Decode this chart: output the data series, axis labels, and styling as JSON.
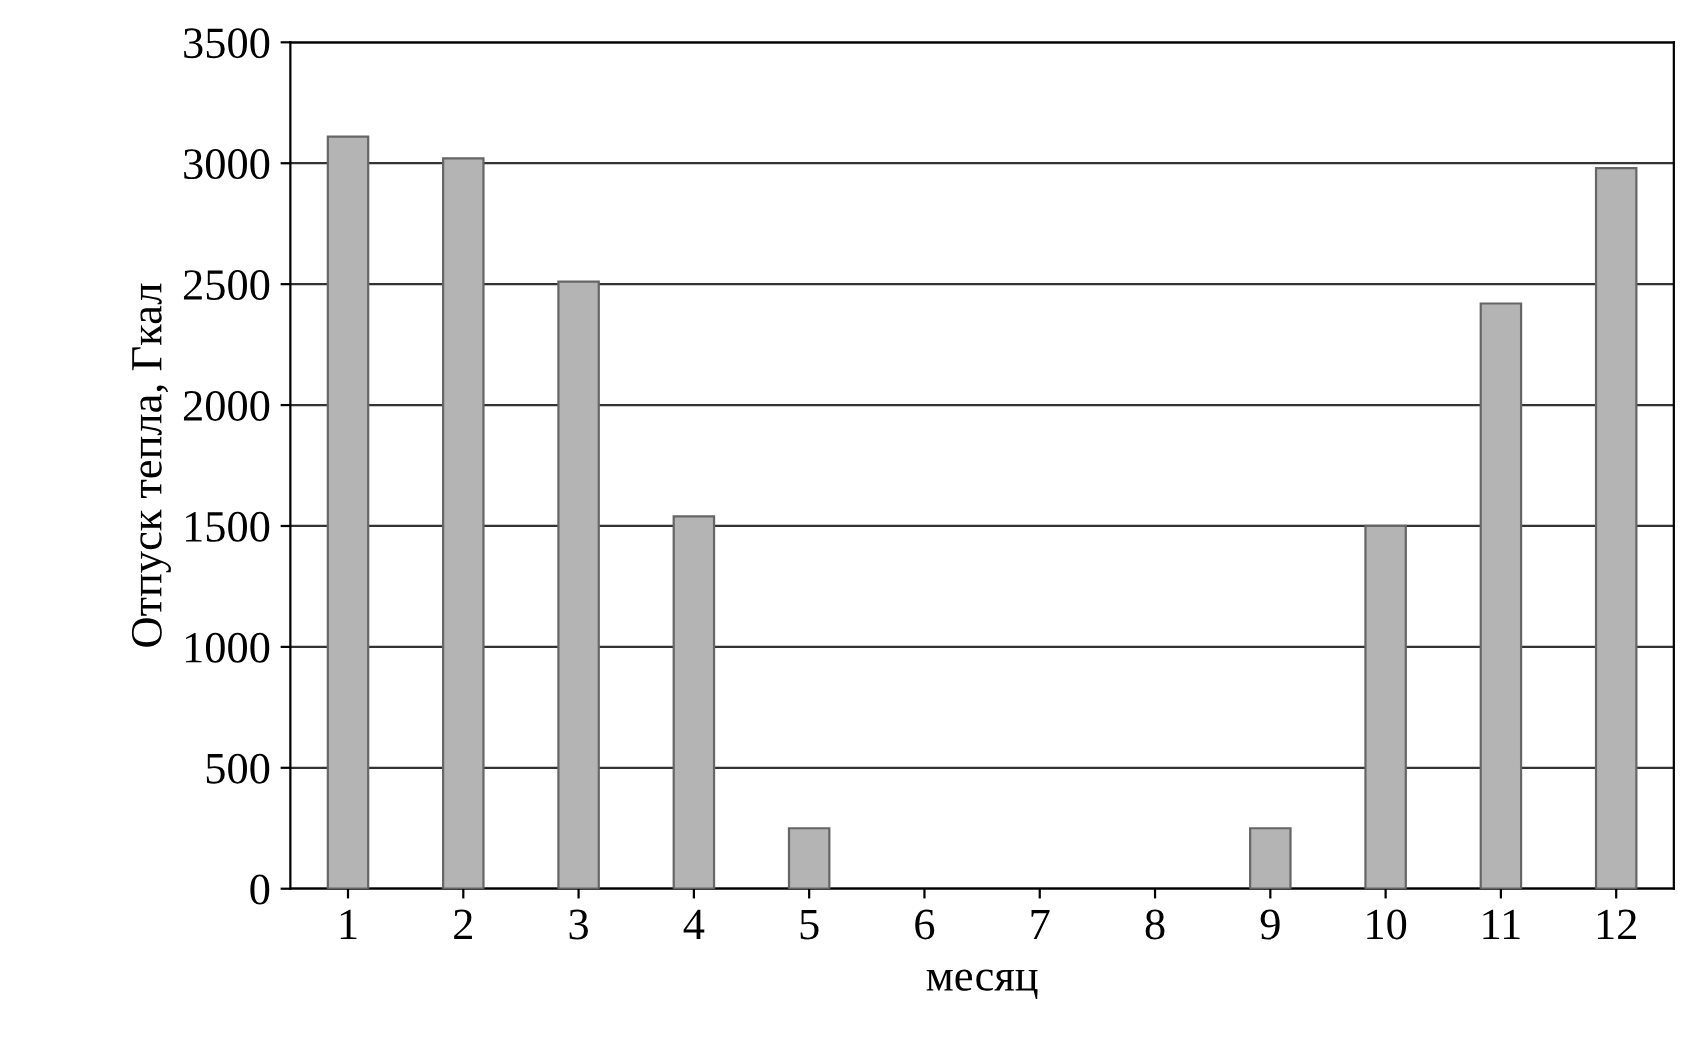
{
  "chart_data": {
    "type": "bar",
    "xlabel": "месяц",
    "ylabel": "Отпуск тепла, Гкал",
    "categories": [
      "1",
      "2",
      "3",
      "4",
      "5",
      "6",
      "7",
      "8",
      "9",
      "10",
      "11",
      "12"
    ],
    "values": [
      3110,
      3020,
      2510,
      1540,
      250,
      null,
      null,
      null,
      250,
      1500,
      2420,
      2980
    ],
    "color": "#b4b4b4",
    "ylim": [
      0,
      3500
    ],
    "yticks": [
      0,
      500,
      1000,
      1500,
      2000,
      2500,
      3000,
      3500
    ],
    "grid": "y"
  }
}
